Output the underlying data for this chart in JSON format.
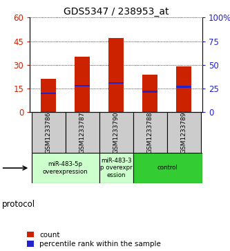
{
  "title": "GDS5347 / 238953_at",
  "samples": [
    "GSM1233786",
    "GSM1233787",
    "GSM1233790",
    "GSM1233788",
    "GSM1233789"
  ],
  "count_values": [
    21,
    35,
    47,
    24,
    29
  ],
  "percentile_values": [
    20,
    28,
    31,
    22,
    27
  ],
  "ylim_left": [
    0,
    60
  ],
  "ylim_right": [
    0,
    100
  ],
  "yticks_left": [
    0,
    15,
    30,
    45,
    60
  ],
  "yticks_right": [
    0,
    25,
    50,
    75,
    100
  ],
  "ytick_labels_right": [
    "0",
    "25",
    "50",
    "75",
    "100%"
  ],
  "bar_color": "#cc2200",
  "percentile_color": "#2222cc",
  "bg_color": "#ffffff",
  "plot_bg": "#ffffff",
  "group_labels": [
    "miR-483-5p\noverexpression",
    "miR-483-3\np overexpr\nession",
    "control"
  ],
  "group_colors": [
    "#ccffcc",
    "#ccffcc",
    "#33cc33"
  ],
  "left_axis_color": "#cc2200",
  "right_axis_color": "#2222cc",
  "bar_width": 0.45,
  "sample_box_color": "#cccccc",
  "protocol_label": "protocol",
  "legend_count_label": "count",
  "legend_percentile_label": "percentile rank within the sample"
}
